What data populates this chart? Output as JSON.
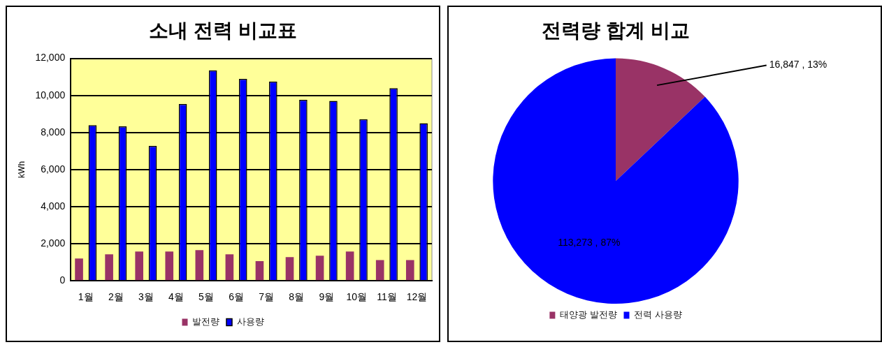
{
  "chart_data": [
    {
      "type": "bar",
      "title": "소내 전력 비교표",
      "ylabel": "kWh",
      "categories": [
        "1월",
        "2월",
        "3월",
        "4월",
        "5월",
        "6월",
        "7월",
        "8월",
        "9월",
        "10월",
        "11월",
        "12월"
      ],
      "series": [
        {
          "name": "발전량",
          "color": "#993366",
          "values": [
            1200,
            1430,
            1580,
            1580,
            1660,
            1430,
            1060,
            1280,
            1350,
            1580,
            1120,
            1120
          ]
        },
        {
          "name": "사용량",
          "color": "#0000ff",
          "values": [
            8400,
            8330,
            7280,
            9540,
            11350,
            10890,
            10750,
            9760,
            9710,
            8720,
            10390,
            8500
          ]
        }
      ],
      "ylim": [
        0,
        12000
      ],
      "yticks": [
        {
          "value": 0,
          "label": "0"
        },
        {
          "value": 2000,
          "label": "2,000"
        },
        {
          "value": 4000,
          "label": "4,000"
        },
        {
          "value": 6000,
          "label": "6,000"
        },
        {
          "value": 8000,
          "label": "8,000"
        },
        {
          "value": 10000,
          "label": "10,000"
        },
        {
          "value": 12000,
          "label": "12,000"
        }
      ],
      "grid": "y",
      "legend": "bottom"
    },
    {
      "type": "pie",
      "title": "전력량 합계 비교",
      "categories": [
        "태양광 발전량",
        "전력 사용량"
      ],
      "values": [
        16847,
        113273
      ],
      "colors": [
        "#993366",
        "#0000ff"
      ],
      "value_labels": [
        "16,847 , 13%",
        "113,273 , 87%"
      ],
      "legend": "bottom"
    }
  ]
}
